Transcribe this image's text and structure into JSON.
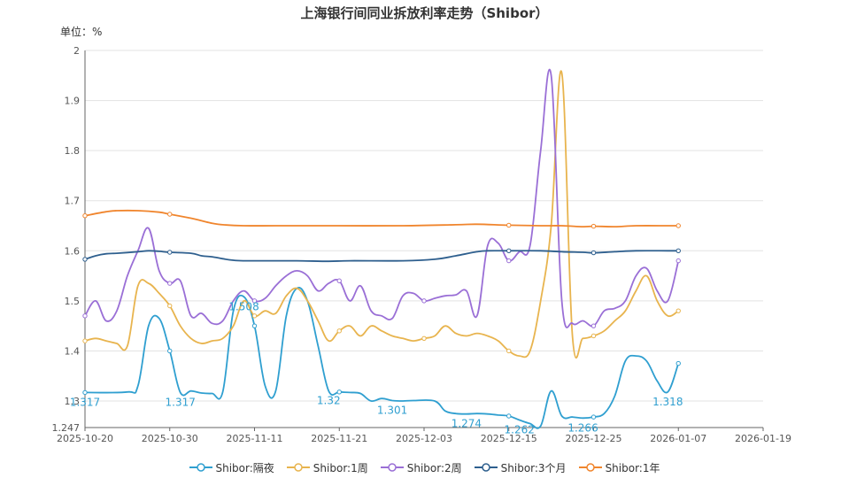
{
  "chart_data": {
    "type": "line",
    "title": "上海银行间同业拆放利率走势（Shibor）",
    "unit_label": "单位：%",
    "ylim": [
      1.247,
      2
    ],
    "y_ticks": [
      "1.247",
      "1.3",
      "1.4",
      "1.5",
      "1.6",
      "1.7",
      "1.8",
      "1.9",
      "2"
    ],
    "x_ticks": [
      "2025-10-20",
      "2025-10-30",
      "2025-11-11",
      "2025-11-21",
      "2025-12-03",
      "2025-12-15",
      "2025-12-25",
      "2026-01-07",
      "2026-01-19"
    ],
    "grid": "horizontal",
    "legend_position": "bottom",
    "x_index_max": 64,
    "series": [
      {
        "name": "Shibor:隔夜",
        "color": "#2f9fd0",
        "points": [
          [
            0,
            1.317
          ],
          [
            4,
            1.318
          ],
          [
            5,
            1.33
          ],
          [
            6,
            1.45
          ],
          [
            7,
            1.465
          ],
          [
            8,
            1.4
          ],
          [
            9,
            1.317
          ],
          [
            10,
            1.32
          ],
          [
            11,
            1.316
          ],
          [
            12,
            1.315
          ],
          [
            13,
            1.318
          ],
          [
            14,
            1.48
          ],
          [
            15,
            1.508
          ],
          [
            16,
            1.45
          ],
          [
            17,
            1.33
          ],
          [
            18,
            1.32
          ],
          [
            19,
            1.47
          ],
          [
            20,
            1.525
          ],
          [
            21,
            1.5
          ],
          [
            22,
            1.41
          ],
          [
            23,
            1.32
          ],
          [
            24,
            1.318
          ],
          [
            25,
            1.317
          ],
          [
            26,
            1.315
          ],
          [
            27,
            1.3
          ],
          [
            28,
            1.305
          ],
          [
            29,
            1.301
          ],
          [
            30,
            1.3
          ],
          [
            31,
            1.301
          ],
          [
            33,
            1.3
          ],
          [
            34,
            1.28
          ],
          [
            35,
            1.275
          ],
          [
            36,
            1.274
          ],
          [
            37,
            1.275
          ],
          [
            38,
            1.274
          ],
          [
            39,
            1.272
          ],
          [
            40,
            1.27
          ],
          [
            41,
            1.262
          ],
          [
            42,
            1.255
          ],
          [
            43,
            1.25
          ],
          [
            44,
            1.32
          ],
          [
            45,
            1.27
          ],
          [
            46,
            1.268
          ],
          [
            47,
            1.266
          ],
          [
            48,
            1.268
          ],
          [
            49,
            1.275
          ],
          [
            50,
            1.31
          ],
          [
            51,
            1.38
          ],
          [
            52,
            1.39
          ],
          [
            53,
            1.38
          ],
          [
            54,
            1.34
          ],
          [
            55,
            1.318
          ],
          [
            56,
            1.375
          ]
        ],
        "labels": [
          [
            0,
            1.317
          ],
          [
            9,
            1.317
          ],
          [
            15,
            1.508
          ],
          [
            23,
            1.32
          ],
          [
            29,
            1.301
          ],
          [
            36,
            1.274
          ],
          [
            41,
            1.262
          ],
          [
            47,
            1.266
          ],
          [
            55,
            1.318
          ]
        ]
      },
      {
        "name": "Shibor:1周",
        "color": "#e8b44e",
        "points": [
          [
            0,
            1.42
          ],
          [
            1,
            1.425
          ],
          [
            2,
            1.42
          ],
          [
            3,
            1.415
          ],
          [
            4,
            1.41
          ],
          [
            5,
            1.53
          ],
          [
            6,
            1.535
          ],
          [
            7,
            1.515
          ],
          [
            8,
            1.49
          ],
          [
            9,
            1.45
          ],
          [
            10,
            1.425
          ],
          [
            11,
            1.415
          ],
          [
            12,
            1.42
          ],
          [
            13,
            1.425
          ],
          [
            14,
            1.45
          ],
          [
            15,
            1.5
          ],
          [
            16,
            1.47
          ],
          [
            17,
            1.48
          ],
          [
            18,
            1.475
          ],
          [
            19,
            1.51
          ],
          [
            20,
            1.525
          ],
          [
            21,
            1.5
          ],
          [
            22,
            1.46
          ],
          [
            23,
            1.42
          ],
          [
            24,
            1.44
          ],
          [
            25,
            1.45
          ],
          [
            26,
            1.43
          ],
          [
            27,
            1.45
          ],
          [
            28,
            1.44
          ],
          [
            29,
            1.43
          ],
          [
            30,
            1.425
          ],
          [
            31,
            1.42
          ],
          [
            32,
            1.425
          ],
          [
            33,
            1.43
          ],
          [
            34,
            1.45
          ],
          [
            35,
            1.435
          ],
          [
            36,
            1.43
          ],
          [
            37,
            1.435
          ],
          [
            38,
            1.43
          ],
          [
            39,
            1.42
          ],
          [
            40,
            1.4
          ],
          [
            41,
            1.39
          ],
          [
            42,
            1.4
          ],
          [
            43,
            1.5
          ],
          [
            44,
            1.65
          ],
          [
            45,
            1.955
          ],
          [
            46,
            1.43
          ],
          [
            47,
            1.425
          ],
          [
            48,
            1.43
          ],
          [
            49,
            1.44
          ],
          [
            50,
            1.46
          ],
          [
            51,
            1.48
          ],
          [
            52,
            1.52
          ],
          [
            53,
            1.55
          ],
          [
            54,
            1.5
          ],
          [
            55,
            1.47
          ],
          [
            56,
            1.48
          ]
        ]
      },
      {
        "name": "Shibor:2周",
        "color": "#9a6fd6",
        "points": [
          [
            0,
            1.47
          ],
          [
            1,
            1.5
          ],
          [
            2,
            1.46
          ],
          [
            3,
            1.48
          ],
          [
            4,
            1.55
          ],
          [
            5,
            1.6
          ],
          [
            6,
            1.645
          ],
          [
            7,
            1.56
          ],
          [
            8,
            1.535
          ],
          [
            9,
            1.54
          ],
          [
            10,
            1.47
          ],
          [
            11,
            1.475
          ],
          [
            12,
            1.455
          ],
          [
            13,
            1.46
          ],
          [
            14,
            1.5
          ],
          [
            15,
            1.52
          ],
          [
            16,
            1.5
          ],
          [
            17,
            1.505
          ],
          [
            18,
            1.53
          ],
          [
            19,
            1.55
          ],
          [
            20,
            1.56
          ],
          [
            21,
            1.55
          ],
          [
            22,
            1.52
          ],
          [
            23,
            1.535
          ],
          [
            24,
            1.54
          ],
          [
            25,
            1.5
          ],
          [
            26,
            1.53
          ],
          [
            27,
            1.48
          ],
          [
            28,
            1.47
          ],
          [
            29,
            1.465
          ],
          [
            30,
            1.51
          ],
          [
            31,
            1.515
          ],
          [
            32,
            1.5
          ],
          [
            33,
            1.505
          ],
          [
            34,
            1.51
          ],
          [
            35,
            1.512
          ],
          [
            36,
            1.52
          ],
          [
            37,
            1.47
          ],
          [
            38,
            1.61
          ],
          [
            39,
            1.615
          ],
          [
            40,
            1.58
          ],
          [
            41,
            1.598
          ],
          [
            42,
            1.61
          ],
          [
            43,
            1.8
          ],
          [
            44,
            1.95
          ],
          [
            45,
            1.5
          ],
          [
            46,
            1.455
          ],
          [
            47,
            1.46
          ],
          [
            48,
            1.45
          ],
          [
            49,
            1.48
          ],
          [
            50,
            1.485
          ],
          [
            51,
            1.5
          ],
          [
            52,
            1.55
          ],
          [
            53,
            1.565
          ],
          [
            54,
            1.52
          ],
          [
            55,
            1.5
          ],
          [
            56,
            1.58
          ]
        ]
      },
      {
        "name": "Shibor:3个月",
        "color": "#2e5f8e",
        "points": [
          [
            0,
            1.583
          ],
          [
            1,
            1.59
          ],
          [
            2,
            1.594
          ],
          [
            3,
            1.595
          ],
          [
            5,
            1.598
          ],
          [
            6,
            1.6
          ],
          [
            7,
            1.599
          ],
          [
            8,
            1.597
          ],
          [
            10,
            1.595
          ],
          [
            11,
            1.59
          ],
          [
            12,
            1.588
          ],
          [
            13,
            1.584
          ],
          [
            14,
            1.581
          ],
          [
            15,
            1.58
          ],
          [
            17,
            1.58
          ],
          [
            20,
            1.58
          ],
          [
            23,
            1.579
          ],
          [
            25,
            1.58
          ],
          [
            30,
            1.58
          ],
          [
            33,
            1.583
          ],
          [
            35,
            1.59
          ],
          [
            37,
            1.598
          ],
          [
            38,
            1.6
          ],
          [
            40,
            1.6
          ],
          [
            43,
            1.6
          ],
          [
            45,
            1.598
          ],
          [
            47,
            1.597
          ],
          [
            48,
            1.596
          ],
          [
            50,
            1.598
          ],
          [
            52,
            1.6
          ],
          [
            55,
            1.6
          ],
          [
            56,
            1.6
          ]
        ]
      },
      {
        "name": "Shibor:1年",
        "color": "#f0852d",
        "points": [
          [
            0,
            1.67
          ],
          [
            2,
            1.678
          ],
          [
            3,
            1.68
          ],
          [
            5,
            1.68
          ],
          [
            7,
            1.677
          ],
          [
            8,
            1.673
          ],
          [
            10,
            1.665
          ],
          [
            11,
            1.66
          ],
          [
            12,
            1.655
          ],
          [
            13,
            1.652
          ],
          [
            15,
            1.65
          ],
          [
            18,
            1.65
          ],
          [
            23,
            1.65
          ],
          [
            30,
            1.65
          ],
          [
            35,
            1.652
          ],
          [
            37,
            1.653
          ],
          [
            40,
            1.651
          ],
          [
            43,
            1.65
          ],
          [
            45,
            1.65
          ],
          [
            47,
            1.648
          ],
          [
            48,
            1.649
          ],
          [
            50,
            1.648
          ],
          [
            52,
            1.65
          ],
          [
            55,
            1.65
          ],
          [
            56,
            1.65
          ]
        ]
      }
    ]
  }
}
